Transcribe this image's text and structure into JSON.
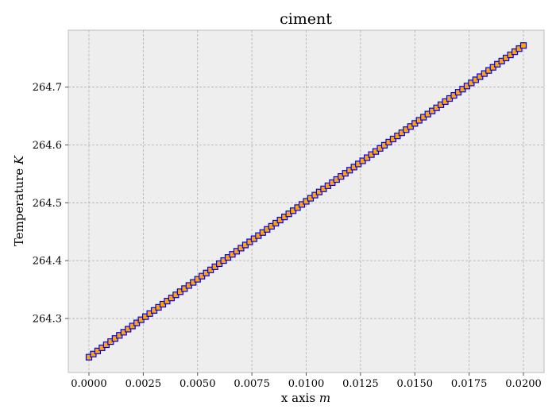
{
  "chart_data": {
    "type": "line",
    "title": "ciment",
    "xlabel": "x axis",
    "xlabel_unit": "m",
    "ylabel": "Temperature",
    "ylabel_unit": "K",
    "xlim": [
      -0.00095,
      0.02095
    ],
    "ylim": [
      264.2065,
      264.7985
    ],
    "xticks": [
      0.0,
      0.0025,
      0.005,
      0.0075,
      0.01,
      0.0125,
      0.015,
      0.0175,
      0.02
    ],
    "xtick_labels": [
      "0.0000",
      "0.0025",
      "0.0050",
      "0.0075",
      "0.0100",
      "0.0125",
      "0.0150",
      "0.0175",
      "0.0200"
    ],
    "yticks": [
      264.3,
      264.4,
      264.5,
      264.6,
      264.7
    ],
    "ytick_labels": [
      "264.3",
      "264.4",
      "264.5",
      "264.6",
      "264.7"
    ],
    "grid": true,
    "series": [
      {
        "x_start": 0.0,
        "x_end": 0.02,
        "num_points": 101,
        "y_start": 264.233,
        "y_end": 264.772,
        "line_color": "#0000ff",
        "marker": "square",
        "marker_face_color": "#ffa500",
        "marker_edge_color": "#0000ff"
      }
    ]
  }
}
